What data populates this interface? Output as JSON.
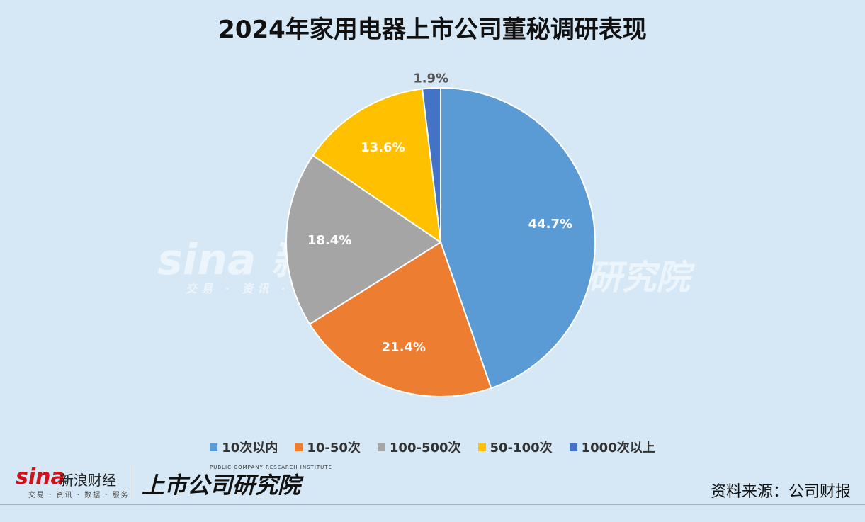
{
  "chart_data": {
    "type": "pie",
    "title": "2024年家用电器上市公司董秘调研表现",
    "slices": [
      {
        "label": "10次以内",
        "value": 44.7,
        "display": "44.7%",
        "color": "#5b9bd5"
      },
      {
        "label": "10-50次",
        "value": 21.4,
        "display": "21.4%",
        "color": "#ed7d31"
      },
      {
        "label": "100-500次",
        "value": 18.4,
        "display": "18.4%",
        "color": "#a5a5a5"
      },
      {
        "label": "50-100次",
        "value": 13.6,
        "display": "13.6%",
        "color": "#ffc000"
      },
      {
        "label": "1000次以上",
        "value": 1.9,
        "display": "1.9%",
        "color": "#4472c4"
      }
    ],
    "legend_position": "bottom"
  },
  "watermark": {
    "left_logo": "sina 新浪",
    "left_sub": "交易 · 资讯 ·",
    "right_text": "研究院"
  },
  "footer": {
    "sina_logo": "sina",
    "sina_name": "新浪财经",
    "sina_sub": "交易 · 资讯 · 数据 · 服务",
    "brand": "上市公司研究院",
    "brand_sub": "PUBLIC COMPANY RESEARCH INSTITUTE",
    "source": "资料来源：公司财报"
  }
}
